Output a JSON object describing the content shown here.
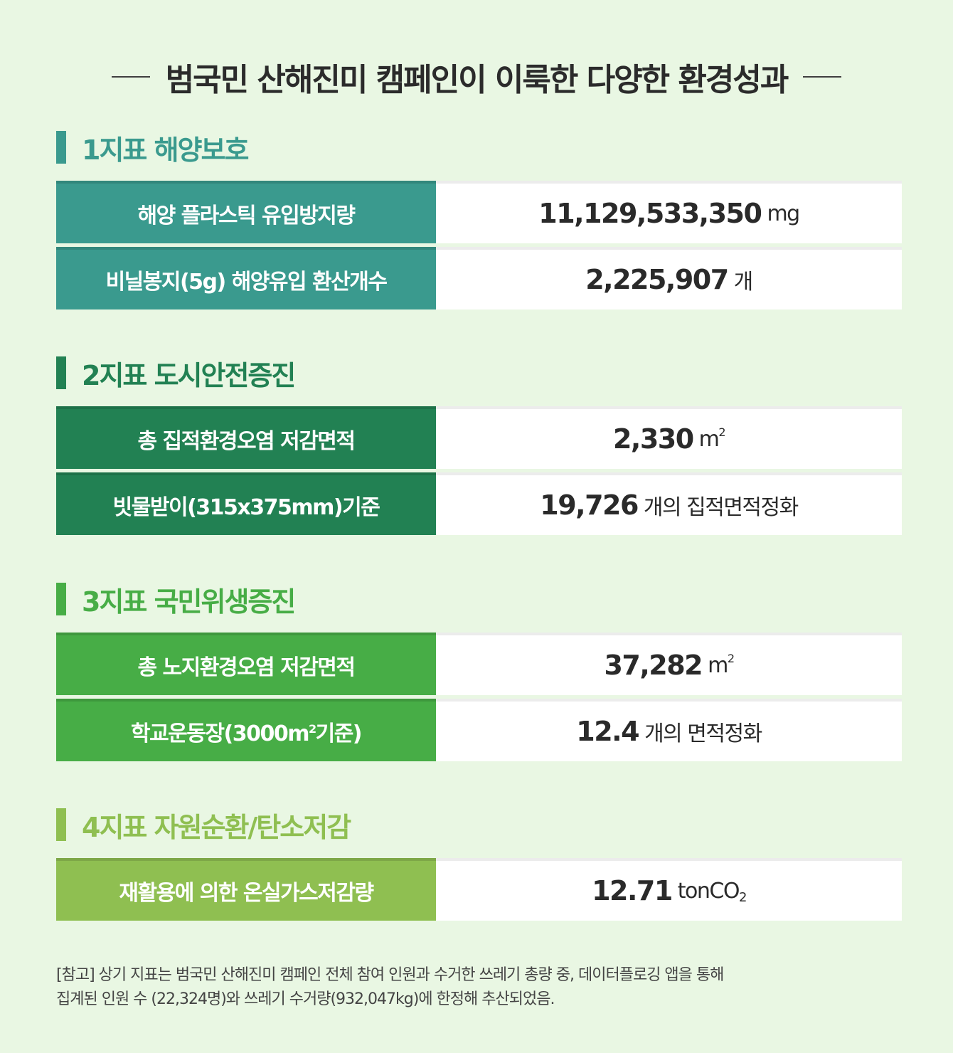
{
  "title": "범국민 산해진미 캠페인이 이룩한 다양한 환경성과",
  "colors": {
    "background": "#e9f7e3",
    "section1": "#3a9a8e",
    "section2": "#228153",
    "section3": "#47ad46",
    "section4": "#8fbf51"
  },
  "sections": [
    {
      "title": "1지표 해양보호",
      "rows": [
        {
          "label": "해양 플라스틱 유입방지량",
          "value": "11,129,533,350",
          "unit": "mg"
        },
        {
          "label": "비닐봉지(5g) 해양유입 환산개수",
          "value": "2,225,907",
          "unit": "개"
        }
      ]
    },
    {
      "title": "2지표 도시안전증진",
      "rows": [
        {
          "label": "총 집적환경오염 저감면적",
          "value": "2,330",
          "unit": "m",
          "unit_sup": "2"
        },
        {
          "label": "빗물받이(315x375mm)기준",
          "value": "19,726",
          "unit": "개의 집적면적정화"
        }
      ]
    },
    {
      "title": "3지표 국민위생증진",
      "rows": [
        {
          "label": "총 노지환경오염 저감면적",
          "value": "37,282",
          "unit": "m",
          "unit_sup": "2"
        },
        {
          "label_pre": "학교운동장(3000m",
          "label_sup": "2",
          "label_post": "기준)",
          "value": "12.4",
          "unit": "개의 면적정화"
        }
      ]
    },
    {
      "title": "4지표 자원순환/탄소저감",
      "rows": [
        {
          "label": "재활용에 의한 온실가스저감량",
          "value": "12.71",
          "unit": "tonCO",
          "unit_sub": "2"
        }
      ]
    }
  ],
  "note": {
    "line1": "[참고] 상기 지표는 범국민 산해진미 캠페인 전체 참여 인원과 수거한 쓰레기 총량 중, 데이터플로깅 앱을 통해",
    "line2": "집계된 인원 수 (22,324명)와 쓰레기 수거량(932,047kg)에 한정해 추산되었음."
  }
}
